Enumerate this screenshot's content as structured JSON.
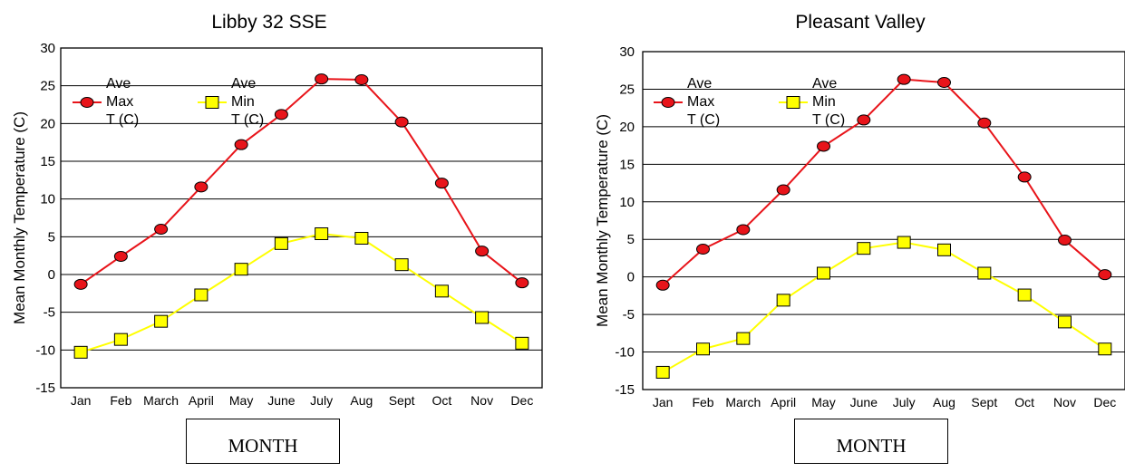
{
  "chart_data": [
    {
      "type": "line",
      "title": "Libby 32 SSE",
      "xlabel": "MONTH",
      "ylabel": "Mean Monthly Temperature (C)",
      "ylim": [
        -15,
        30
      ],
      "yticks": [
        -15,
        -10,
        -5,
        0,
        5,
        10,
        15,
        20,
        25,
        30
      ],
      "grid": true,
      "legend_position": "top-left",
      "categories": [
        "Jan",
        "Feb",
        "March",
        "April",
        "May",
        "June",
        "July",
        "Aug",
        "Sept",
        "Oct",
        "Nov",
        "Dec"
      ],
      "series": [
        {
          "name": "Ave Max T (C)",
          "legend_lines": [
            "Ave",
            "Max",
            "T (C)"
          ],
          "marker": "circle",
          "color": "#e8141a",
          "values": [
            -1.3,
            2.4,
            6.0,
            11.6,
            17.2,
            21.2,
            25.9,
            25.8,
            20.2,
            12.1,
            3.1,
            -1.1
          ]
        },
        {
          "name": "Ave Min T (C)",
          "legend_lines": [
            "Ave",
            "Min",
            "T (C)"
          ],
          "marker": "square",
          "color": "#ffff00",
          "values": [
            -10.3,
            -8.6,
            -6.2,
            -2.7,
            0.7,
            4.1,
            5.4,
            4.8,
            1.3,
            -2.2,
            -5.7,
            -9.1
          ]
        }
      ]
    },
    {
      "type": "line",
      "title": "Pleasant Valley",
      "xlabel": "MONTH",
      "ylabel": "Mean Monthly Temperature (C)",
      "ylim": [
        -15,
        30
      ],
      "yticks": [
        -15,
        -10,
        -5,
        0,
        5,
        10,
        15,
        20,
        25,
        30
      ],
      "grid": true,
      "legend_position": "top-left",
      "categories": [
        "Jan",
        "Feb",
        "March",
        "April",
        "May",
        "June",
        "July",
        "Aug",
        "Sept",
        "Oct",
        "Nov",
        "Dec"
      ],
      "series": [
        {
          "name": "Ave Max T (C)",
          "legend_lines": [
            "Ave",
            "Max",
            "T (C)"
          ],
          "marker": "circle",
          "color": "#e8141a",
          "values": [
            -1.1,
            3.7,
            6.3,
            11.6,
            17.4,
            20.9,
            26.3,
            25.9,
            20.5,
            13.3,
            4.9,
            0.3
          ]
        },
        {
          "name": "Ave Min T (C)",
          "legend_lines": [
            "Ave",
            "Min",
            "T (C)"
          ],
          "marker": "square",
          "color": "#ffff00",
          "values": [
            -12.7,
            -9.6,
            -8.2,
            -3.1,
            0.5,
            3.8,
            4.6,
            3.6,
            0.5,
            -2.4,
            -6.0,
            -9.6
          ]
        }
      ]
    }
  ]
}
